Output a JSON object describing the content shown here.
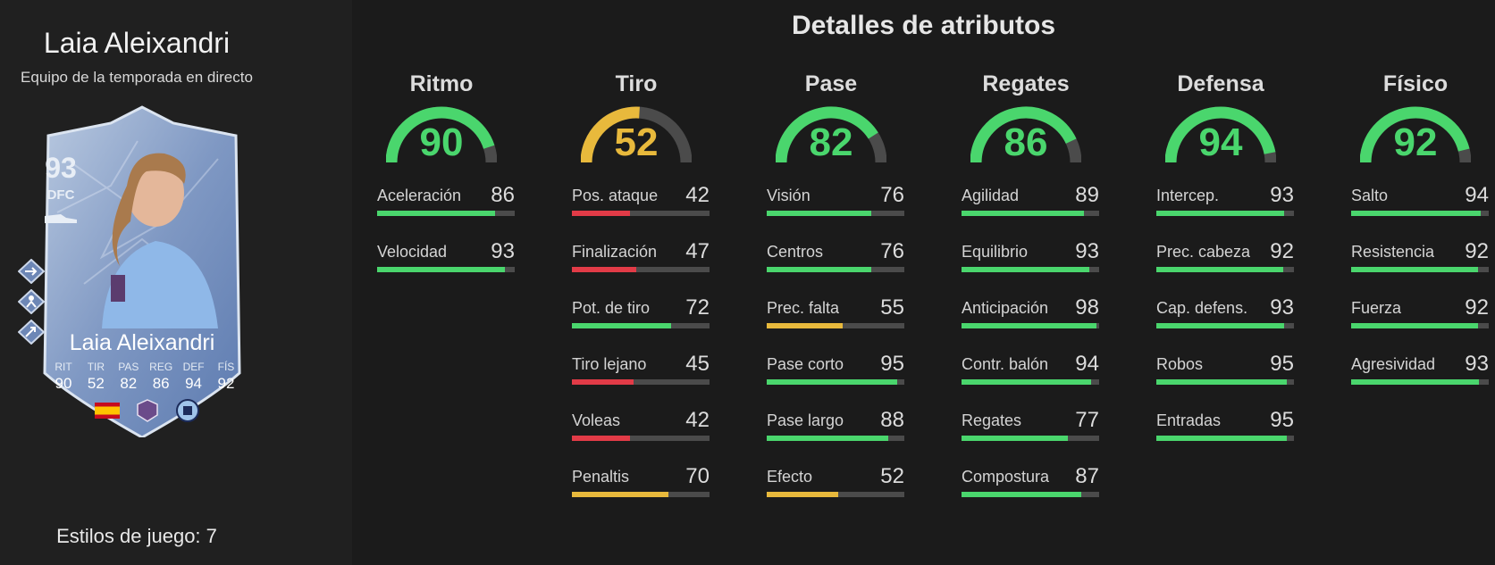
{
  "player": {
    "name": "Laia Aleixandri",
    "subtitle": "Equipo de la temporada en directo",
    "playstyles_label": "Estilos de juego: 7"
  },
  "card": {
    "overall": "93",
    "position": "DFC",
    "name": "Laia Aleixandri",
    "stats": [
      {
        "label": "RIT",
        "value": "90"
      },
      {
        "label": "TIR",
        "value": "52"
      },
      {
        "label": "PAS",
        "value": "82"
      },
      {
        "label": "REG",
        "value": "86"
      },
      {
        "label": "DEF",
        "value": "94"
      },
      {
        "label": "FÍS",
        "value": "92"
      }
    ],
    "icons": [
      "nation-flag-spain-icon",
      "league-badge-icon",
      "club-crest-icon",
      "boot-icon"
    ]
  },
  "title": "Detalles de atributos",
  "colors": {
    "green": "#4ad66d",
    "yellow": "#e8b93c",
    "red": "#e23b47",
    "track": "#4b4b4b"
  },
  "categories": [
    {
      "name": "Ritmo",
      "value": 90,
      "color": "#4ad66d",
      "stats": [
        {
          "label": "Aceleración",
          "value": 86,
          "color": "#4ad66d"
        },
        {
          "label": "Velocidad",
          "value": 93,
          "color": "#4ad66d"
        }
      ]
    },
    {
      "name": "Tiro",
      "value": 52,
      "color": "#e8b93c",
      "stats": [
        {
          "label": "Pos. ataque",
          "value": 42,
          "color": "#e23b47"
        },
        {
          "label": "Finalización",
          "value": 47,
          "color": "#e23b47"
        },
        {
          "label": "Pot. de tiro",
          "value": 72,
          "color": "#4ad66d"
        },
        {
          "label": "Tiro lejano",
          "value": 45,
          "color": "#e23b47"
        },
        {
          "label": "Voleas",
          "value": 42,
          "color": "#e23b47"
        },
        {
          "label": "Penaltis",
          "value": 70,
          "color": "#e8b93c"
        }
      ]
    },
    {
      "name": "Pase",
      "value": 82,
      "color": "#4ad66d",
      "stats": [
        {
          "label": "Visión",
          "value": 76,
          "color": "#4ad66d"
        },
        {
          "label": "Centros",
          "value": 76,
          "color": "#4ad66d"
        },
        {
          "label": "Prec. falta",
          "value": 55,
          "color": "#e8b93c"
        },
        {
          "label": "Pase corto",
          "value": 95,
          "color": "#4ad66d"
        },
        {
          "label": "Pase largo",
          "value": 88,
          "color": "#4ad66d"
        },
        {
          "label": "Efecto",
          "value": 52,
          "color": "#e8b93c"
        }
      ]
    },
    {
      "name": "Regates",
      "value": 86,
      "color": "#4ad66d",
      "stats": [
        {
          "label": "Agilidad",
          "value": 89,
          "color": "#4ad66d"
        },
        {
          "label": "Equilibrio",
          "value": 93,
          "color": "#4ad66d"
        },
        {
          "label": "Anticipación",
          "value": 98,
          "color": "#4ad66d"
        },
        {
          "label": "Contr. balón",
          "value": 94,
          "color": "#4ad66d"
        },
        {
          "label": "Regates",
          "value": 77,
          "color": "#4ad66d"
        },
        {
          "label": "Compostura",
          "value": 87,
          "color": "#4ad66d"
        }
      ]
    },
    {
      "name": "Defensa",
      "value": 94,
      "color": "#4ad66d",
      "stats": [
        {
          "label": "Intercep.",
          "value": 93,
          "color": "#4ad66d"
        },
        {
          "label": "Prec. cabeza",
          "value": 92,
          "color": "#4ad66d"
        },
        {
          "label": "Cap. defens.",
          "value": 93,
          "color": "#4ad66d"
        },
        {
          "label": "Robos",
          "value": 95,
          "color": "#4ad66d"
        },
        {
          "label": "Entradas",
          "value": 95,
          "color": "#4ad66d"
        }
      ]
    },
    {
      "name": "Físico",
      "value": 92,
      "color": "#4ad66d",
      "stats": [
        {
          "label": "Salto",
          "value": 94,
          "color": "#4ad66d"
        },
        {
          "label": "Resistencia",
          "value": 92,
          "color": "#4ad66d"
        },
        {
          "label": "Fuerza",
          "value": 92,
          "color": "#4ad66d"
        },
        {
          "label": "Agresividad",
          "value": 93,
          "color": "#4ad66d"
        }
      ]
    }
  ]
}
